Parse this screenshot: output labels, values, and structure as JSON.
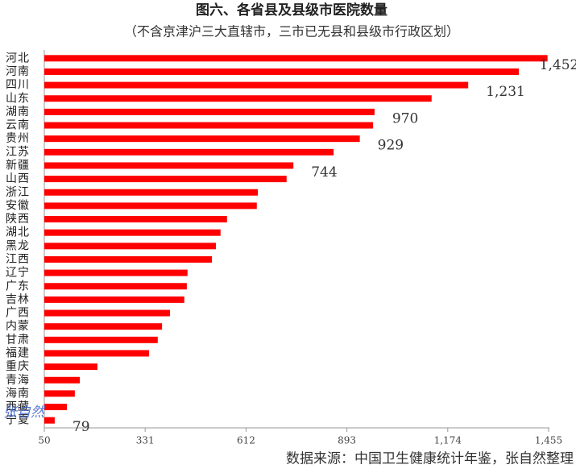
{
  "chart_data": {
    "type": "hbar",
    "title": "图六、各省县及县级市医院数量",
    "subtitle": "（不含京津沪三大直辖市，三市已无县和县级市行政区划）",
    "source": "数据来源：中国卫生健康统计年鉴，张自然整理",
    "watermark": "张自然",
    "color": "#ff0000",
    "categories": [
      "河北",
      "河南",
      "四川",
      "山东",
      "湖南",
      "云南",
      "贵州",
      "江苏",
      "新疆",
      "山西",
      "浙江",
      "安徽",
      "陕西",
      "湖北",
      "黑龙",
      "江西",
      "辽宁",
      "广东",
      "吉林",
      "广西",
      "内蒙",
      "甘肃",
      "福建",
      "重庆",
      "青海",
      "海南",
      "西藏",
      "宁夏"
    ],
    "values": [
      1452,
      1372,
      1231,
      1129,
      970,
      966,
      929,
      856,
      744,
      725,
      645,
      642,
      559,
      541,
      528,
      517,
      449,
      447,
      440,
      400,
      378,
      366,
      342,
      198,
      149,
      135,
      113,
      79
    ],
    "value_labels": [
      "1,452",
      null,
      "1,231",
      null,
      "970",
      null,
      "929",
      null,
      "744",
      null,
      null,
      null,
      null,
      null,
      null,
      null,
      null,
      null,
      null,
      null,
      null,
      null,
      null,
      null,
      null,
      null,
      null,
      "79"
    ],
    "xlim": [
      50,
      1455
    ],
    "xticks": [
      50,
      331,
      612,
      893,
      {
        "value": 1174,
        "label": "1,174"
      },
      {
        "value": 1455,
        "label": "1,455"
      }
    ]
  }
}
